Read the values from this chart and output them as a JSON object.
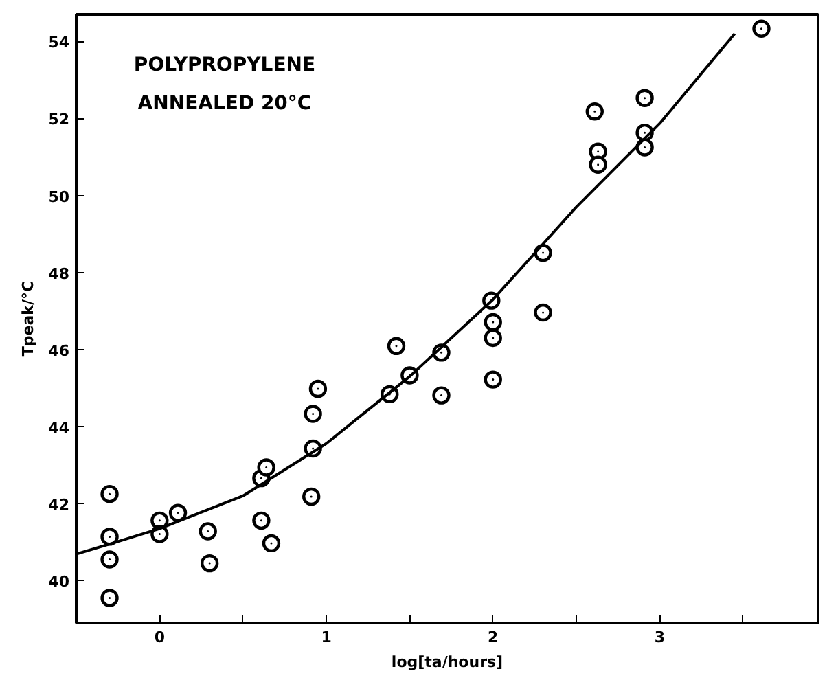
{
  "chart_data": {
    "type": "scatter",
    "xlabel": "log[ta/hours]",
    "ylabel": "Tpeak/°C",
    "annotations": [
      "POLYPROPYLENE",
      "ANNEALED 20°C"
    ],
    "xlim": [
      -0.5,
      3.95
    ],
    "ylim": [
      38.9,
      54.7
    ],
    "xticks": [
      {
        "value": -0.5,
        "label": null
      },
      0,
      {
        "value": 0.5,
        "label": null
      },
      1,
      {
        "value": 1.5,
        "label": null
      },
      2,
      {
        "value": 2.5,
        "label": null
      },
      3,
      {
        "value": 3.5,
        "label": null
      }
    ],
    "yticks": [
      40,
      42,
      44,
      46,
      48,
      50,
      52,
      54
    ],
    "grid": false,
    "series": [
      {
        "marker": "circle",
        "color": "#000000",
        "x": [
          -0.3,
          -0.3,
          -0.3,
          -0.3,
          0.0,
          0.0,
          0.11,
          0.29,
          0.3,
          0.61,
          0.64,
          0.61,
          0.67,
          0.92,
          0.95,
          0.92,
          0.91,
          1.38,
          1.42,
          1.5,
          1.69,
          1.69,
          1.99,
          2.0,
          2.0,
          2.0,
          2.3,
          2.3,
          2.61,
          2.63,
          2.63,
          2.91,
          2.91,
          2.91,
          3.61
        ],
        "values": [
          42.25,
          41.14,
          40.55,
          39.55,
          41.56,
          41.21,
          41.76,
          41.28,
          40.45,
          42.66,
          42.94,
          41.56,
          40.97,
          44.33,
          44.98,
          43.43,
          42.18,
          44.84,
          46.09,
          45.33,
          45.92,
          44.81,
          47.27,
          46.71,
          46.3,
          45.22,
          48.51,
          46.96,
          52.18,
          51.14,
          50.8,
          52.53,
          51.63,
          51.25,
          54.33
        ]
      },
      {
        "type": "line",
        "line_style": "solid",
        "color": "#000000",
        "x": [
          -0.5,
          -0.3,
          0.0,
          0.5,
          1.0,
          1.5,
          2.0,
          2.5,
          3.0,
          3.45
        ],
        "values": [
          40.69,
          40.95,
          41.35,
          42.2,
          43.56,
          45.3,
          47.3,
          49.7,
          51.87,
          54.2
        ]
      }
    ]
  }
}
